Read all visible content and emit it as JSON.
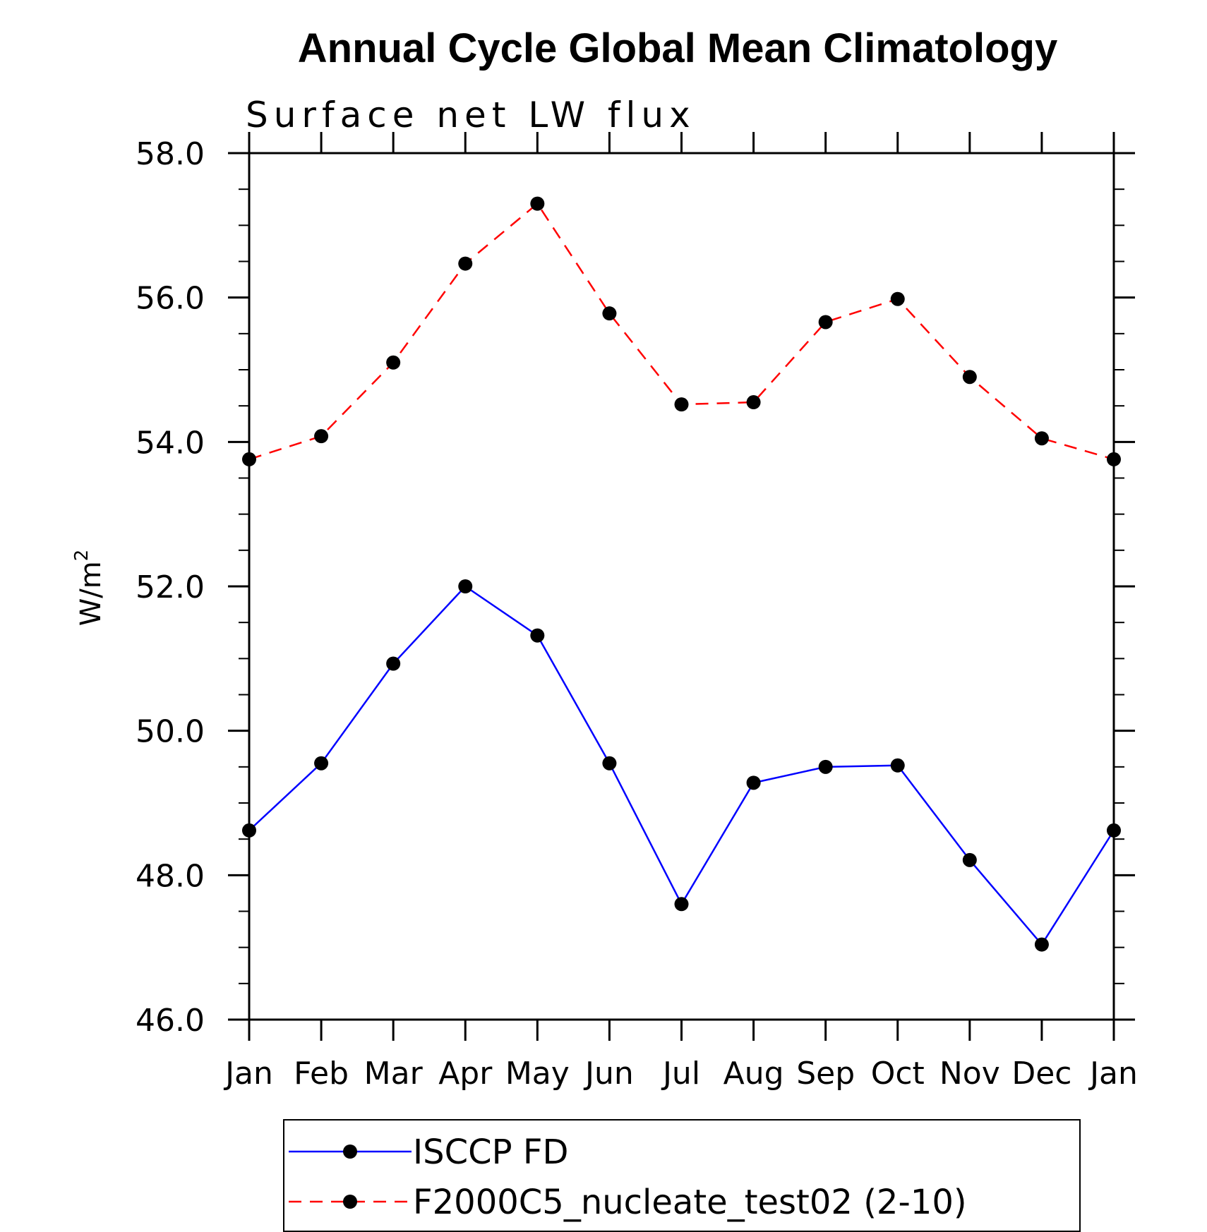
{
  "chart_data": {
    "type": "line",
    "title": "Annual Cycle Global Mean Climatology",
    "subtitle": "Surface net LW flux",
    "ylabel_main": "W/m",
    "ylabel_sup": "2",
    "categories": [
      "Jan",
      "Feb",
      "Mar",
      "Apr",
      "May",
      "Jun",
      "Jul",
      "Aug",
      "Sep",
      "Oct",
      "Nov",
      "Dec",
      "Jan"
    ],
    "ylim": [
      46.0,
      58.0
    ],
    "yticks": [
      "46.0",
      "48.0",
      "50.0",
      "52.0",
      "54.0",
      "56.0",
      "58.0"
    ],
    "ytick_values": [
      46,
      48,
      50,
      52,
      54,
      56,
      58
    ],
    "series": [
      {
        "name": "ISCCP FD",
        "color": "#0000ff",
        "dash": "solid",
        "values": [
          48.62,
          49.55,
          50.93,
          52.0,
          51.32,
          49.55,
          47.6,
          49.28,
          49.5,
          49.52,
          48.21,
          47.04,
          48.62
        ]
      },
      {
        "name": "F2000C5_nucleate_test02 (2-10)",
        "color": "#ff0000",
        "dash": "dashed",
        "values": [
          53.76,
          54.08,
          55.1,
          56.47,
          57.3,
          55.78,
          54.52,
          54.55,
          55.66,
          55.98,
          54.9,
          54.05,
          53.76
        ]
      }
    ],
    "marker": "filled-circle",
    "marker_color": "#000000",
    "grid": false,
    "legend_position": "bottom"
  }
}
